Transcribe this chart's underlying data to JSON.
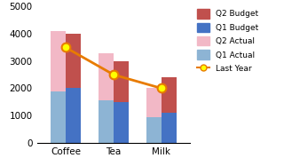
{
  "categories": [
    "Coffee",
    "Tea",
    "Milk"
  ],
  "q1_actual": [
    1900,
    1550,
    950
  ],
  "q2_actual": [
    2200,
    1750,
    1050
  ],
  "q1_budget": [
    2000,
    1500,
    1100
  ],
  "q2_budget": [
    2000,
    1500,
    1300
  ],
  "last_year": [
    3500,
    2500,
    2000
  ],
  "colors": {
    "q1_actual": "#8db4d4",
    "q2_actual": "#f2b8c6",
    "q1_budget": "#4472c4",
    "q2_budget": "#c0504d"
  },
  "line_color": "#e87b00",
  "marker_color": "#ffff00",
  "ylim": [
    0,
    5000
  ],
  "yticks": [
    0,
    1000,
    2000,
    3000,
    4000,
    5000
  ],
  "bar_width": 0.32,
  "background_color": "#ffffff",
  "figsize": [
    3.2,
    1.87
  ],
  "dpi": 100
}
